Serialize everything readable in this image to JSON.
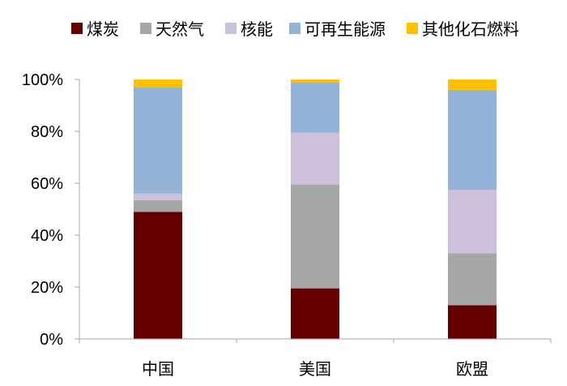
{
  "chart_data": {
    "type": "bar",
    "stacked": true,
    "categories": [
      "中国",
      "美国",
      "欧盟"
    ],
    "series": [
      {
        "name": "煤炭",
        "color": "#660000",
        "values": [
          49,
          19.5,
          13
        ]
      },
      {
        "name": "天然气",
        "color": "#A6A6A6",
        "values": [
          4.5,
          40,
          20
        ]
      },
      {
        "name": "核能",
        "color": "#CCC0DA",
        "values": [
          2.5,
          20,
          24.5
        ]
      },
      {
        "name": "可再生能源",
        "color": "#95B3D7",
        "values": [
          41,
          19.5,
          38.5
        ]
      },
      {
        "name": "其他化石燃料",
        "color": "#FFC000",
        "values": [
          3,
          1,
          4
        ]
      }
    ],
    "ylim": [
      0,
      100
    ],
    "yticks": [
      0,
      20,
      40,
      60,
      80,
      100
    ],
    "ytick_labels": [
      "0%",
      "20%",
      "40%",
      "60%",
      "80%",
      "100%"
    ],
    "legend": "top",
    "grid": false,
    "axis_color": "#A6A6A6"
  }
}
